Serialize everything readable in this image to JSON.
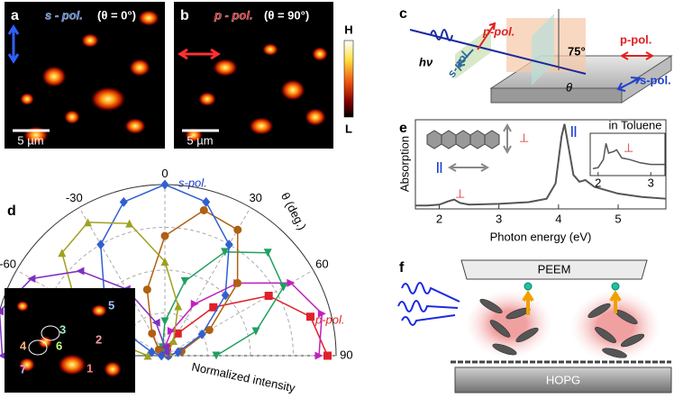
{
  "figure": {
    "a": {
      "label": "a",
      "pol": "s - pol.",
      "angle": "(θ = 0°)",
      "scale_bar": "5 µm"
    },
    "b": {
      "label": "b",
      "pol": "p - pol.",
      "angle": "(θ = 90°)",
      "scale_bar": "5 µm"
    },
    "colorbar": {
      "high": "H",
      "low": "L"
    },
    "c": {
      "label": "c",
      "hv": "hν",
      "p_pol": "p-pol.",
      "s_pol": "s-pol.",
      "angle": "75°",
      "theta": "θ",
      "p_pol_right": "p-pol.",
      "s_pol_right": "s-pol."
    },
    "d": {
      "label": "d",
      "inset_labels": [
        "1",
        "2",
        "3",
        "4",
        "5",
        "6",
        "7"
      ]
    },
    "e": {
      "label": "e",
      "perp": "⊥",
      "para": "||",
      "perp_peak": "⊥",
      "para_peak": "||",
      "inset_title": "in Toluene",
      "inset_perp": "⊥"
    },
    "f": {
      "label": "f",
      "peem": "PEEM",
      "hopg": "HOPG"
    }
  },
  "chart_data": [
    {
      "type": "polar",
      "theta_label": "θ (deg.)",
      "r_label": "Normalized intensity",
      "top_note": "s-pol.",
      "right_note": "p-pol.",
      "thetaticks": [
        -60,
        -30,
        0,
        30,
        60,
        90
      ],
      "rlim": [
        0,
        1
      ],
      "rgrid": [
        0.25,
        0.5,
        0.75
      ],
      "theta": [
        -90,
        -75,
        -60,
        -45,
        -30,
        -15,
        0,
        15,
        30,
        45,
        60,
        75,
        90
      ],
      "series": [
        {
          "color": "#e0202a",
          "marker": "square",
          "values": [
            null,
            null,
            null,
            null,
            null,
            null,
            0.02,
            0.05,
            0.15,
            0.4,
            0.7,
            0.88,
            0.95
          ]
        },
        {
          "color": "#c020c0",
          "marker": "tri-right",
          "values": [
            null,
            null,
            null,
            null,
            null,
            0.02,
            0.05,
            0.15,
            0.35,
            0.6,
            0.85,
            0.95,
            0.9
          ]
        },
        {
          "color": "#20a060",
          "marker": "tri-down",
          "values": [
            null,
            null,
            null,
            null,
            0.02,
            0.05,
            0.2,
            0.45,
            0.7,
            0.85,
            0.8,
            0.55,
            0.3
          ]
        },
        {
          "color": "#b06010",
          "marker": "circle",
          "values": [
            null,
            null,
            null,
            0.05,
            0.15,
            0.4,
            0.7,
            0.88,
            0.85,
            0.6,
            0.3,
            0.1,
            0.02
          ]
        },
        {
          "color": "#3060d0",
          "marker": "diamond",
          "values": [
            0.02,
            0.08,
            0.25,
            0.5,
            0.75,
            0.93,
            1.0,
            0.93,
            0.75,
            0.5,
            0.25,
            0.08,
            0.02
          ]
        },
        {
          "color": "#a0a020",
          "marker": "tri-up",
          "values": [
            0.1,
            0.3,
            0.6,
            0.85,
            0.9,
            0.8,
            0.55,
            0.3,
            0.1,
            0.03,
            null,
            null,
            null
          ]
        },
        {
          "color": "#8030c0",
          "marker": "tri-left",
          "values": [
            0.95,
            1.0,
            0.9,
            0.7,
            0.45,
            0.2,
            0.05,
            0.02,
            null,
            null,
            null,
            null,
            null
          ]
        }
      ]
    },
    {
      "type": "line",
      "xlabel": "Photon energy (eV)",
      "ylabel": "Absorption",
      "color": "#555555",
      "xlim": [
        1.6,
        5.8
      ],
      "xticks": [
        2,
        3,
        4,
        5
      ],
      "ylim": [
        0,
        1.05
      ],
      "x": [
        1.6,
        1.8,
        2.0,
        2.15,
        2.25,
        2.35,
        2.5,
        3.0,
        3.5,
        3.8,
        3.95,
        4.05,
        4.1,
        4.15,
        4.25,
        4.35,
        4.45,
        4.6,
        5.0,
        5.4,
        5.8
      ],
      "values": [
        0.04,
        0.04,
        0.05,
        0.09,
        0.11,
        0.07,
        0.05,
        0.06,
        0.08,
        0.12,
        0.3,
        0.85,
        1.0,
        0.8,
        0.4,
        0.32,
        0.34,
        0.26,
        0.18,
        0.14,
        0.12
      ],
      "inset": {
        "xlim": [
          1.85,
          3.27
        ],
        "xticks": [
          2,
          3
        ],
        "ylim": [
          0,
          1
        ],
        "x": [
          1.9,
          2.0,
          2.1,
          2.15,
          2.2,
          2.3,
          2.35,
          2.45,
          2.6,
          2.8,
          3.0,
          3.27
        ],
        "values": [
          0.02,
          0.05,
          0.3,
          0.8,
          0.5,
          0.55,
          0.6,
          0.35,
          0.3,
          0.2,
          0.15,
          0.15
        ]
      }
    }
  ]
}
